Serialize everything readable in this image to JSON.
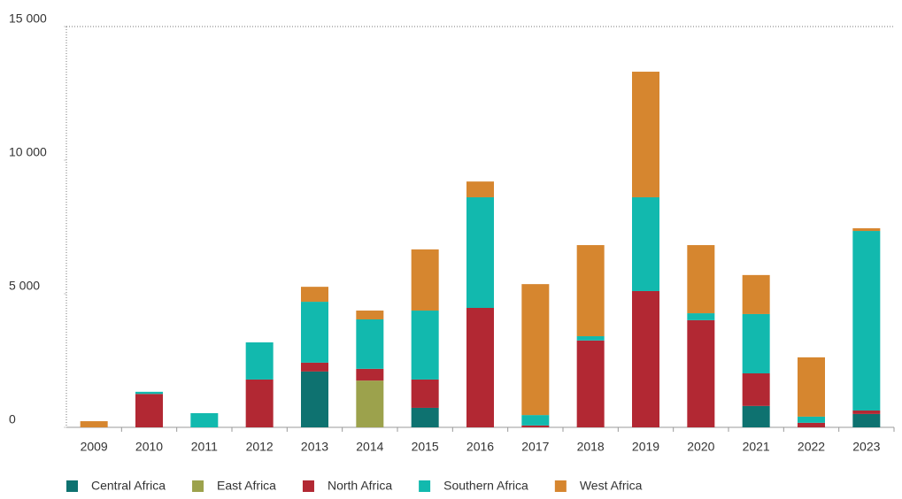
{
  "chart_data": {
    "type": "stacked_bar",
    "categories": [
      "2009",
      "2010",
      "2011",
      "2012",
      "2013",
      "2014",
      "2015",
      "2016",
      "2017",
      "2018",
      "2019",
      "2020",
      "2021",
      "2022",
      "2023"
    ],
    "series": [
      {
        "name": "Central Africa",
        "color": "#0e7270",
        "values": [
          0,
          0,
          0,
          0,
          2090,
          0,
          730,
          0,
          0,
          0,
          0,
          0,
          800,
          0,
          500
        ]
      },
      {
        "name": "East Africa",
        "color": "#9ca24c",
        "values": [
          0,
          0,
          0,
          0,
          0,
          1750,
          0,
          0,
          0,
          0,
          0,
          0,
          0,
          0,
          0
        ]
      },
      {
        "name": "North Africa",
        "color": "#b22833",
        "values": [
          0,
          1250,
          0,
          1790,
          330,
          440,
          1060,
          4470,
          70,
          3250,
          5100,
          4010,
          1220,
          170,
          130
        ]
      },
      {
        "name": "Southern Africa",
        "color": "#12b9ae",
        "values": [
          0,
          80,
          530,
          1390,
          2280,
          1850,
          2580,
          4140,
          390,
          160,
          3510,
          260,
          2220,
          230,
          6720
        ]
      },
      {
        "name": "West Africa",
        "color": "#d6862f",
        "values": [
          230,
          0,
          0,
          0,
          560,
          330,
          2290,
          590,
          4900,
          3410,
          4700,
          2550,
          1460,
          2220,
          100
        ]
      }
    ],
    "ylim": [
      0,
      15000
    ],
    "yticks": [
      0,
      {
        "value": 5000,
        "label": "5 000"
      },
      {
        "value": 10000,
        "label": "10 000"
      },
      {
        "value": 15000,
        "label": "15 000"
      }
    ],
    "legend": "bottom"
  }
}
